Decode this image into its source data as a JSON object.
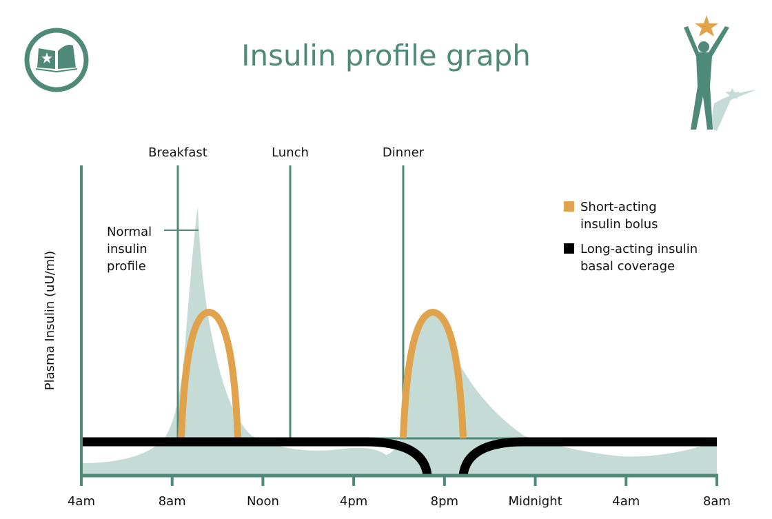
{
  "title": "Insulin profile graph",
  "colors": {
    "accent": "#4f8a78",
    "fill": "#c5dcd6",
    "bolus": "#e0a24a",
    "basal": "#000000"
  },
  "icons": [
    "book-star-logo-icon",
    "person-reaching-star-icon"
  ],
  "chart_data": {
    "type": "area",
    "title": "Insulin profile graph",
    "ylabel": "Plasma Insulin (uU/ml)",
    "xlabel": "",
    "x_ticks": [
      "4am",
      "8am",
      "Noon",
      "4pm",
      "8pm",
      "Midnight",
      "4am",
      "8am"
    ],
    "meals": [
      "Breakfast",
      "Lunch",
      "Dinner"
    ],
    "annotation": "Normal insulin profile",
    "annotation_lines": [
      "Normal",
      "insulin",
      "profile"
    ],
    "legend": [
      {
        "lines": [
          "Short-acting",
          "insulin bolus"
        ],
        "color": "#e0a24a"
      },
      {
        "lines": [
          "Long-acting insulin",
          "basal coverage"
        ],
        "color": "#000000"
      }
    ],
    "legend_position": "top-right",
    "grid": false
  }
}
